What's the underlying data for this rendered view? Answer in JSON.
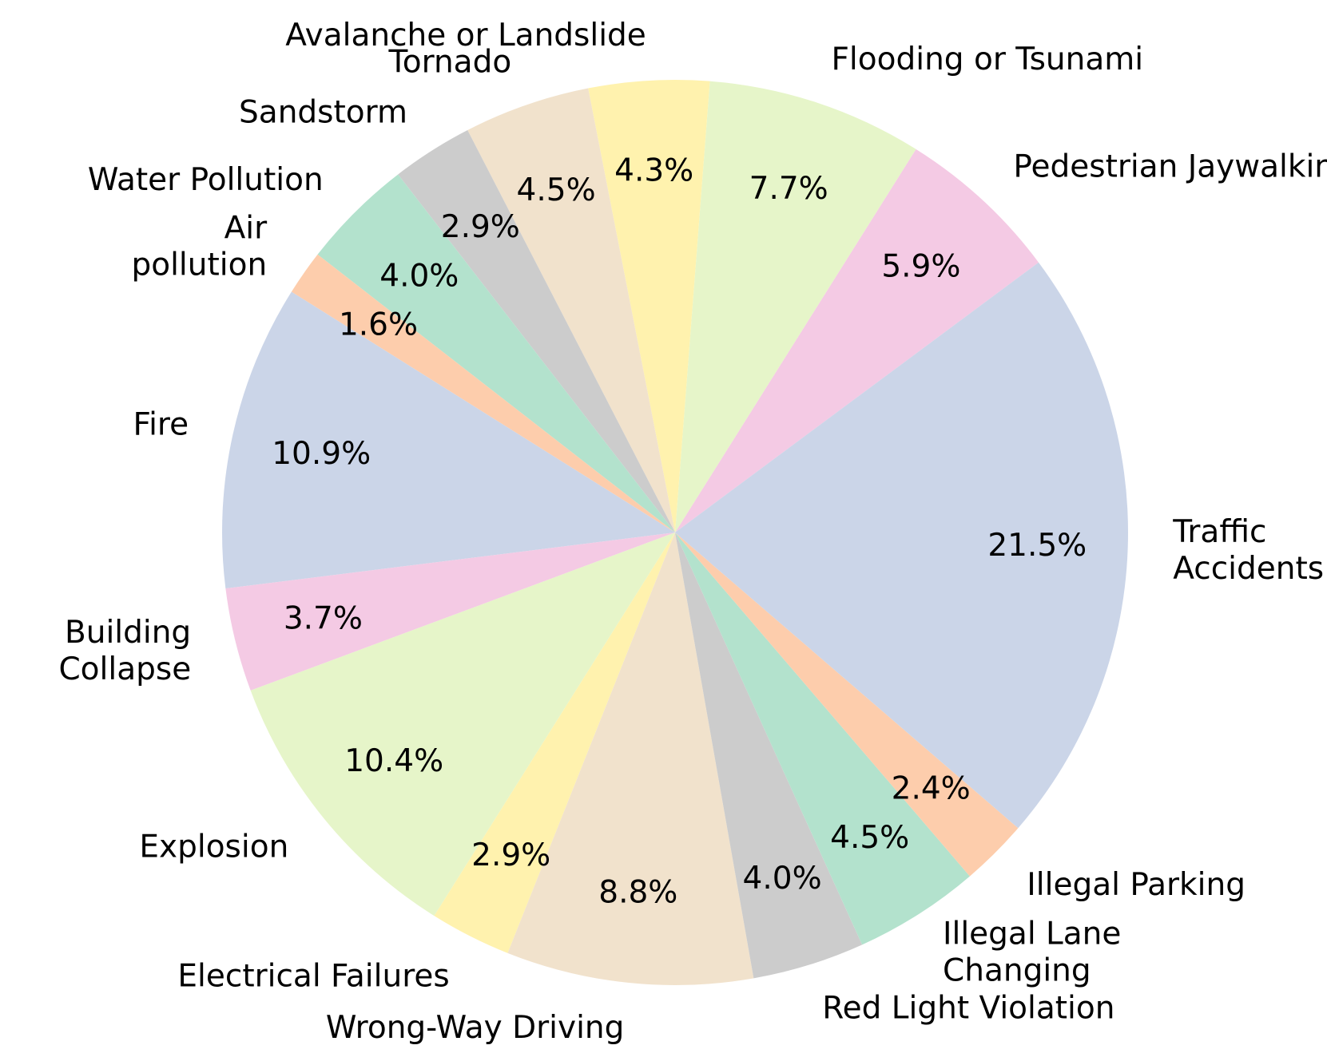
{
  "chart_data": {
    "type": "pie",
    "start_angle_deg": 36.63,
    "direction": "counterclockwise",
    "slices": [
      {
        "label": "Pedestrian Jaywalking",
        "label_lines": [
          "Pedestrian Jaywalking"
        ],
        "value": 5.9,
        "pct_label": "5.9%",
        "color": "#f4cae4"
      },
      {
        "label": "Flooding or Tsunami",
        "label_lines": [
          "Flooding or Tsunami"
        ],
        "value": 7.7,
        "pct_label": "7.7%",
        "color": "#e6f5c9"
      },
      {
        "label": "Avalanche or Landslide",
        "label_lines": [
          "Avalanche or Landslide"
        ],
        "value": 4.3,
        "pct_label": "4.3%",
        "color": "#fff2ae"
      },
      {
        "label": "Tornado",
        "label_lines": [
          "Tornado"
        ],
        "value": 4.5,
        "pct_label": "4.5%",
        "color": "#f1e2cc"
      },
      {
        "label": "Sandstorm",
        "label_lines": [
          "Sandstorm"
        ],
        "value": 2.9,
        "pct_label": "2.9%",
        "color": "#cccccc"
      },
      {
        "label": "Water Pollution",
        "label_lines": [
          "Water Pollution"
        ],
        "value": 4.0,
        "pct_label": "4.0%",
        "color": "#b3e2cd"
      },
      {
        "label": "Air pollution",
        "label_lines": [
          "Air",
          "pollution"
        ],
        "value": 1.6,
        "pct_label": "1.6%",
        "color": "#fdcdac"
      },
      {
        "label": "Fire",
        "label_lines": [
          "Fire"
        ],
        "value": 10.9,
        "pct_label": "10.9%",
        "color": "#cbd5e8"
      },
      {
        "label": "Building Collapse",
        "label_lines": [
          "Building",
          "Collapse"
        ],
        "value": 3.7,
        "pct_label": "3.7%",
        "color": "#f4cae4"
      },
      {
        "label": "Explosion",
        "label_lines": [
          "Explosion"
        ],
        "value": 10.4,
        "pct_label": "10.4%",
        "color": "#e6f5c9"
      },
      {
        "label": "Electrical Failures",
        "label_lines": [
          "Electrical Failures"
        ],
        "value": 2.9,
        "pct_label": "2.9%",
        "color": "#fff2ae"
      },
      {
        "label": "Wrong-Way Driving",
        "label_lines": [
          "Wrong-Way Driving"
        ],
        "value": 8.8,
        "pct_label": "8.8%",
        "color": "#f1e2cc"
      },
      {
        "label": "Red Light Violation",
        "label_lines": [
          "Red Light Violation"
        ],
        "value": 4.0,
        "pct_label": "4.0%",
        "color": "#cccccc"
      },
      {
        "label": "Illegal Lane Changing",
        "label_lines": [
          "Illegal Lane",
          "Changing"
        ],
        "value": 4.5,
        "pct_label": "4.5%",
        "color": "#b3e2cd"
      },
      {
        "label": "Illegal Parking",
        "label_lines": [
          "Illegal Parking"
        ],
        "value": 2.4,
        "pct_label": "2.4%",
        "color": "#fdcdac"
      },
      {
        "label": "Traffic Accidents",
        "label_lines": [
          "Traffic",
          "Accidents"
        ],
        "value": 21.5,
        "pct_label": "21.5%",
        "color": "#cbd5e8"
      }
    ]
  }
}
